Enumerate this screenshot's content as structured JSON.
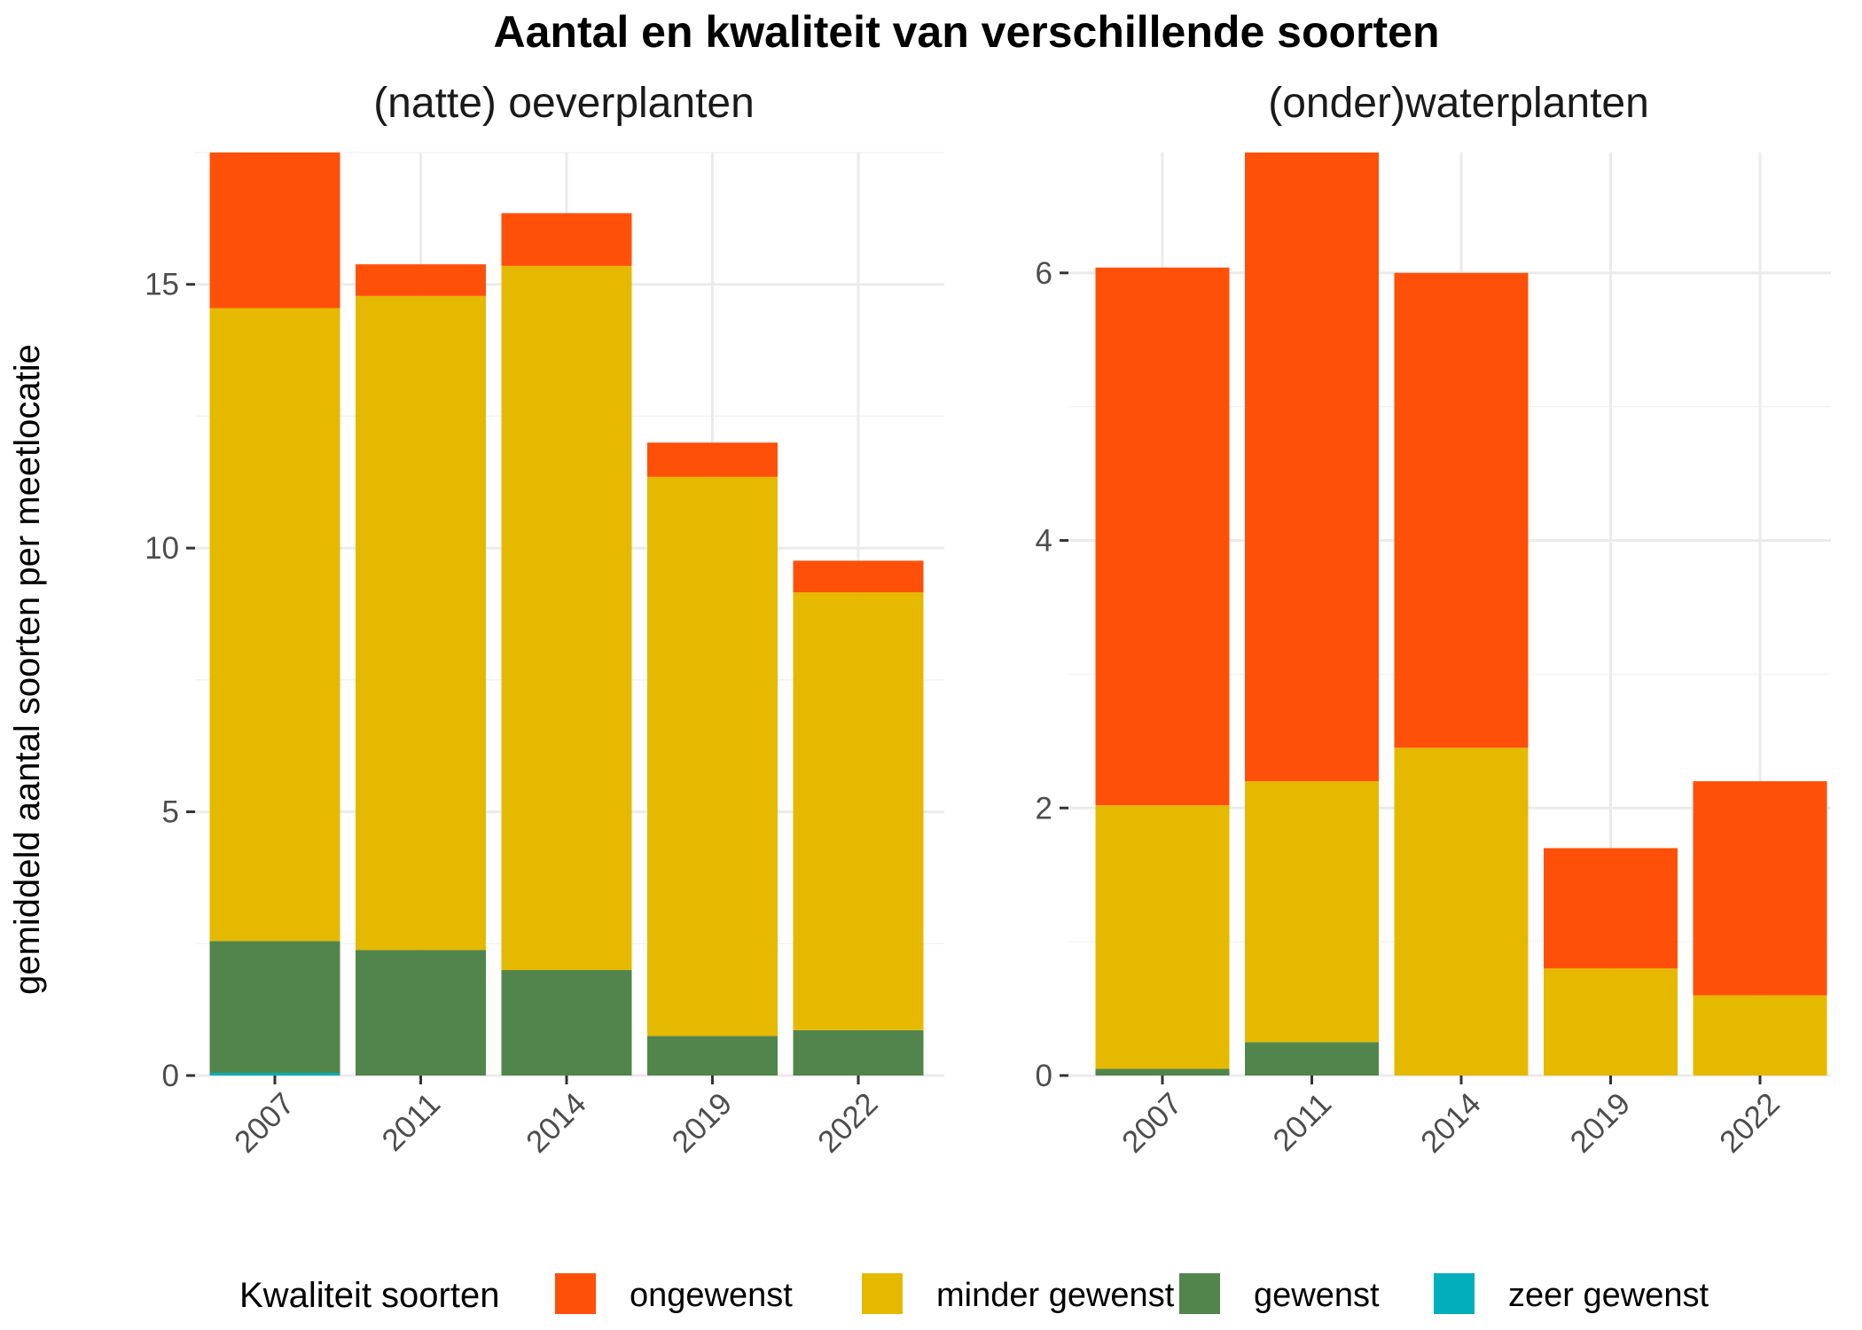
{
  "title": "Aantal en kwaliteit van verschillende soorten",
  "ylabel": "gemiddeld aantal soorten per meetlocatie",
  "legend": {
    "title": "Kwaliteit soorten",
    "placement": "bottom",
    "items": [
      {
        "label": "ongewenst",
        "color": "#FF5009"
      },
      {
        "label": "minder gewenst",
        "color": "#E5B900"
      },
      {
        "label": "gewenst",
        "color": "#52854C"
      },
      {
        "label": "zeer gewenst",
        "color": "#00AFBB"
      }
    ]
  },
  "chart_data": [
    {
      "type": "bar",
      "stacked": true,
      "title": "(natte) oeverplanten",
      "categories": [
        "2007",
        "2011",
        "2014",
        "2019",
        "2022"
      ],
      "ylim": [
        0,
        17.5
      ],
      "yticks": [
        0,
        5,
        10,
        15
      ],
      "grid": true,
      "series": [
        {
          "name": "zeer gewenst",
          "values": [
            0.05,
            0,
            0,
            0,
            0
          ]
        },
        {
          "name": "gewenst",
          "values": [
            2.5,
            2.38,
            2.0,
            0.75,
            0.86
          ]
        },
        {
          "name": "minder gewenst",
          "values": [
            12.0,
            12.4,
            13.35,
            10.6,
            8.3
          ]
        },
        {
          "name": "ongewenst",
          "values": [
            2.95,
            0.6,
            1.0,
            0.65,
            0.6
          ]
        }
      ]
    },
    {
      "type": "bar",
      "stacked": true,
      "title": "(onder)waterplanten",
      "categories": [
        "2007",
        "2011",
        "2014",
        "2019",
        "2022"
      ],
      "ylim": [
        0,
        6.9
      ],
      "yticks": [
        0,
        2,
        4,
        6
      ],
      "grid": true,
      "series": [
        {
          "name": "zeer gewenst",
          "values": [
            0,
            0,
            0,
            0,
            0
          ]
        },
        {
          "name": "gewenst",
          "values": [
            0.05,
            0.25,
            0,
            0,
            0
          ]
        },
        {
          "name": "minder gewenst",
          "values": [
            1.97,
            1.95,
            2.45,
            0.8,
            0.6
          ]
        },
        {
          "name": "ongewenst",
          "values": [
            4.02,
            4.7,
            3.55,
            0.9,
            1.6
          ]
        }
      ]
    }
  ]
}
